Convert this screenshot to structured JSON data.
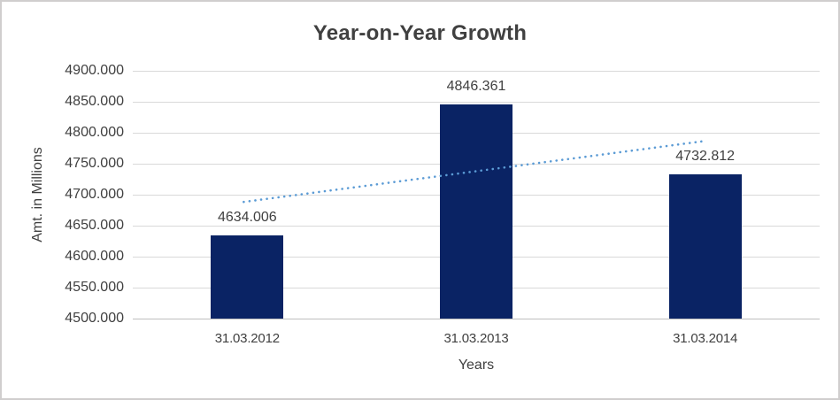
{
  "chart_data": {
    "type": "bar",
    "title": "Year-on-Year Growth",
    "xlabel": "Years",
    "ylabel": "Amt. in Millions",
    "categories": [
      "31.03.2012",
      "31.03.2013",
      "31.03.2014"
    ],
    "values": [
      4634.006,
      4846.361,
      4732.812
    ],
    "value_labels": [
      "4634.006",
      "4846.361",
      "4732.812"
    ],
    "ylim": [
      4500,
      4900
    ],
    "ytick_step": 50,
    "yticks": [
      {
        "value": 4900,
        "label": "4900.000"
      },
      {
        "value": 4850,
        "label": "4850.000"
      },
      {
        "value": 4800,
        "label": "4800.000"
      },
      {
        "value": 4750,
        "label": "4750.000"
      },
      {
        "value": 4700,
        "label": "4700.000"
      },
      {
        "value": 4650,
        "label": "4650.000"
      },
      {
        "value": 4600,
        "label": "4600.000"
      },
      {
        "value": 4550,
        "label": "4550.000"
      },
      {
        "value": 4500,
        "label": "4500.000"
      }
    ],
    "grid": true,
    "legend": "none",
    "trendline": {
      "type": "linear",
      "style": "dotted",
      "start_value": 4688.3,
      "end_value": 4787.1,
      "color": "#5b9bd5"
    },
    "colors": {
      "bar": "#0a2364",
      "grid": "#d9d9d9",
      "baseline": "#bfbfbf",
      "axis_text": "#404040",
      "title_text": "#404040",
      "chart_border": "#d0cece",
      "background": "#ffffff"
    }
  }
}
